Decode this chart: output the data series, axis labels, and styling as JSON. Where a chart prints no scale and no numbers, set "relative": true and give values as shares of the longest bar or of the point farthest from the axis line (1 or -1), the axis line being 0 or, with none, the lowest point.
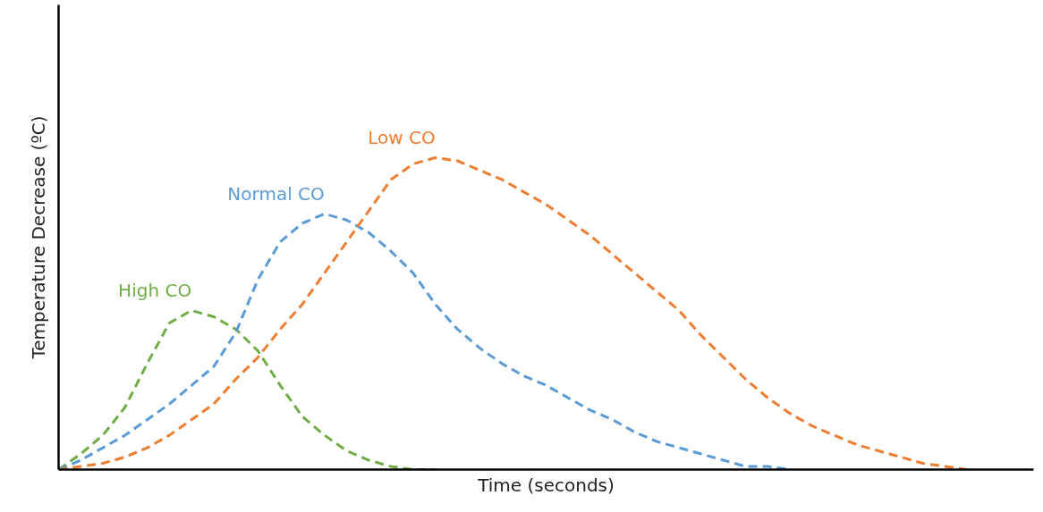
{
  "chart_data": {
    "type": "line",
    "relative": true,
    "xlabel": "Time (seconds)",
    "ylabel": "Temperature Decrease (ºC)",
    "line_style": "dashed",
    "grid": false,
    "categories": [
      null,
      null,
      null,
      null,
      null,
      null,
      null,
      null,
      null,
      null,
      null,
      null,
      null,
      null,
      null,
      null,
      null,
      null,
      null,
      null,
      null,
      null,
      null,
      null,
      null,
      null,
      null,
      null,
      null,
      null,
      null,
      null,
      null,
      null,
      null,
      null,
      null,
      null,
      null,
      null,
      null,
      null,
      null,
      null,
      null
    ],
    "series": [
      {
        "name": "High CO",
        "color": "#70ad47",
        "values": [
          0,
          0.05,
          0.11,
          0.2,
          0.34,
          0.47,
          0.51,
          0.49,
          0.45,
          0.38,
          0.27,
          0.17,
          0.11,
          0.06,
          0.03,
          0.01,
          0,
          0,
          null,
          null,
          null,
          null,
          null,
          null,
          null,
          null,
          null,
          null,
          null,
          null,
          null,
          null,
          null,
          null,
          null,
          null,
          null,
          null,
          null,
          null,
          null,
          null,
          null,
          null,
          null
        ]
      },
      {
        "name": "Normal CO",
        "color": "#5b9bd5",
        "values": [
          0,
          0.03,
          0.07,
          0.11,
          0.16,
          0.21,
          0.27,
          0.33,
          0.44,
          0.61,
          0.73,
          0.79,
          0.82,
          0.8,
          0.76,
          0.7,
          0.63,
          0.53,
          0.45,
          0.39,
          0.34,
          0.3,
          0.27,
          0.23,
          0.19,
          0.16,
          0.12,
          0.09,
          0.07,
          0.05,
          0.03,
          0.01,
          0.01,
          0,
          null,
          null,
          null,
          null,
          null,
          null,
          null,
          null,
          null,
          null,
          null
        ]
      },
      {
        "name": "Low CO",
        "color": "#ed7d31",
        "values": [
          0,
          0.01,
          0.02,
          0.04,
          0.07,
          0.11,
          0.16,
          0.21,
          0.29,
          0.36,
          0.45,
          0.53,
          0.63,
          0.73,
          0.83,
          0.93,
          0.98,
          1,
          0.99,
          0.96,
          0.93,
          0.89,
          0.85,
          0.8,
          0.75,
          0.69,
          0.63,
          0.57,
          0.51,
          0.43,
          0.36,
          0.29,
          0.23,
          0.18,
          0.14,
          0.11,
          0.08,
          0.06,
          0.04,
          0.02,
          0.01,
          0,
          null,
          null,
          null
        ]
      }
    ]
  }
}
